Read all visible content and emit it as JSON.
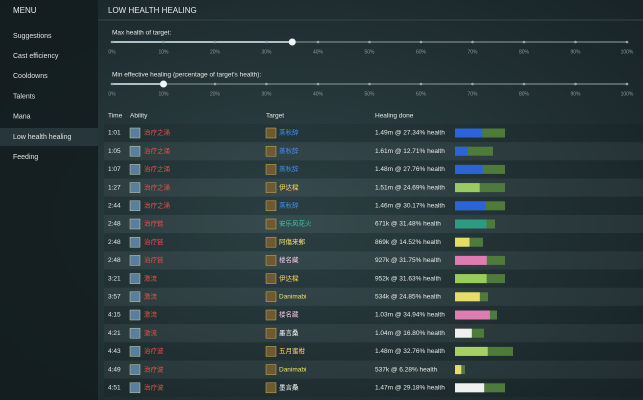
{
  "menu": {
    "title": "MENU",
    "items": [
      "Suggestions",
      "Cast efficiency",
      "Cooldowns",
      "Talents",
      "Mana",
      "Low health healing",
      "Feeding"
    ],
    "active": 5
  },
  "header": {
    "title": "LOW HEALTH HEALING"
  },
  "sliders": [
    {
      "label": "Max health of target:",
      "value": 35
    },
    {
      "label": "Min effective healing (percentage of target's health):",
      "value": 10
    }
  ],
  "slider_ticks": [
    {
      "value": 0,
      "label": "0%"
    },
    {
      "value": 10,
      "label": "10%"
    },
    {
      "value": 20,
      "label": "20%"
    },
    {
      "value": 30,
      "label": "30%"
    },
    {
      "value": 40,
      "label": "40%"
    },
    {
      "value": 50,
      "label": "50%"
    },
    {
      "value": 60,
      "label": "60%"
    },
    {
      "value": 70,
      "label": "70%"
    },
    {
      "value": 80,
      "label": "80%"
    },
    {
      "value": 90,
      "label": "90%"
    },
    {
      "value": 100,
      "label": "100%"
    }
  ],
  "table": {
    "columns": [
      "Time",
      "Ability",
      "Target",
      "Healing done"
    ],
    "rows": [
      {
        "time": "1:01",
        "ability": "治疗之涌",
        "target": "蒸秋辞",
        "healing": "1.49m @ 27.34% health",
        "pct": 27.34,
        "total": 50,
        "color": "#2d62d8"
      },
      {
        "time": "1:05",
        "ability": "治疗之涌",
        "target": "蒸秋辞",
        "healing": "1.61m @ 12.71% health",
        "pct": 12.71,
        "total": 38,
        "color": "#2d62d8"
      },
      {
        "time": "1:07",
        "ability": "治疗之涌",
        "target": "蒸秋辞",
        "healing": "1.48m @ 27.76% health",
        "pct": 27.76,
        "total": 50,
        "color": "#2d62d8"
      },
      {
        "time": "1:27",
        "ability": "治疗之涌",
        "target": "伊达樑",
        "healing": "1.51m @ 24.69% health",
        "pct": 24.69,
        "total": 50,
        "color": "#9acb62"
      },
      {
        "time": "2:44",
        "ability": "治疗之涌",
        "target": "蒸秋辞",
        "healing": "1.46m @ 30.17% health",
        "pct": 30.17,
        "total": 50,
        "color": "#2d62d8"
      },
      {
        "time": "2:48",
        "ability": "治疗链",
        "target": "安乐风花火",
        "healing": "671k @ 31.48% health",
        "pct": 31.48,
        "total": 40,
        "color": "#2e9a82"
      },
      {
        "time": "2:48",
        "ability": "治疗链",
        "target": "阿傷来郵",
        "healing": "869k @ 14.52% health",
        "pct": 14.52,
        "total": 28,
        "color": "#e6dc6a"
      },
      {
        "time": "2:48",
        "ability": "治疗链",
        "target": "楼名藏",
        "healing": "927k @ 31.75% health",
        "pct": 31.75,
        "total": 50,
        "color": "#e07ab2"
      },
      {
        "time": "3:21",
        "ability": "激流",
        "target": "伊达樑",
        "healing": "952k @ 31.63% health",
        "pct": 31.63,
        "total": 50,
        "color": "#9acb62"
      },
      {
        "time": "3:57",
        "ability": "激流",
        "target": "Danimabi",
        "healing": "534k @ 24.85% health",
        "pct": 24.85,
        "total": 33,
        "color": "#e6dc6a"
      },
      {
        "time": "4:15",
        "ability": "激流",
        "target": "楼名藏",
        "healing": "1.03m @ 34.94% health",
        "pct": 34.94,
        "total": 42,
        "color": "#e07ab2"
      },
      {
        "time": "4:21",
        "ability": "激流",
        "target": "墨言桑",
        "healing": "1.04m @ 16.80% health",
        "pct": 16.8,
        "total": 29,
        "color": "#f0f0f0"
      },
      {
        "time": "4:43",
        "ability": "治疗波",
        "target": "五月蜜柑",
        "healing": "1.48m @ 32.76% health",
        "pct": 32.76,
        "total": 58,
        "color": "#a8d060"
      },
      {
        "time": "4:49",
        "ability": "治疗波",
        "target": "Danimabi",
        "healing": "537k @ 6.28% health",
        "pct": 6.28,
        "total": 10,
        "color": "#e6dc6a"
      },
      {
        "time": "4:51",
        "ability": "治疗波",
        "target": "墨言桑",
        "healing": "1.47m @ 29.18% health",
        "pct": 29.18,
        "total": 50,
        "color": "#f0f0f0"
      }
    ]
  }
}
